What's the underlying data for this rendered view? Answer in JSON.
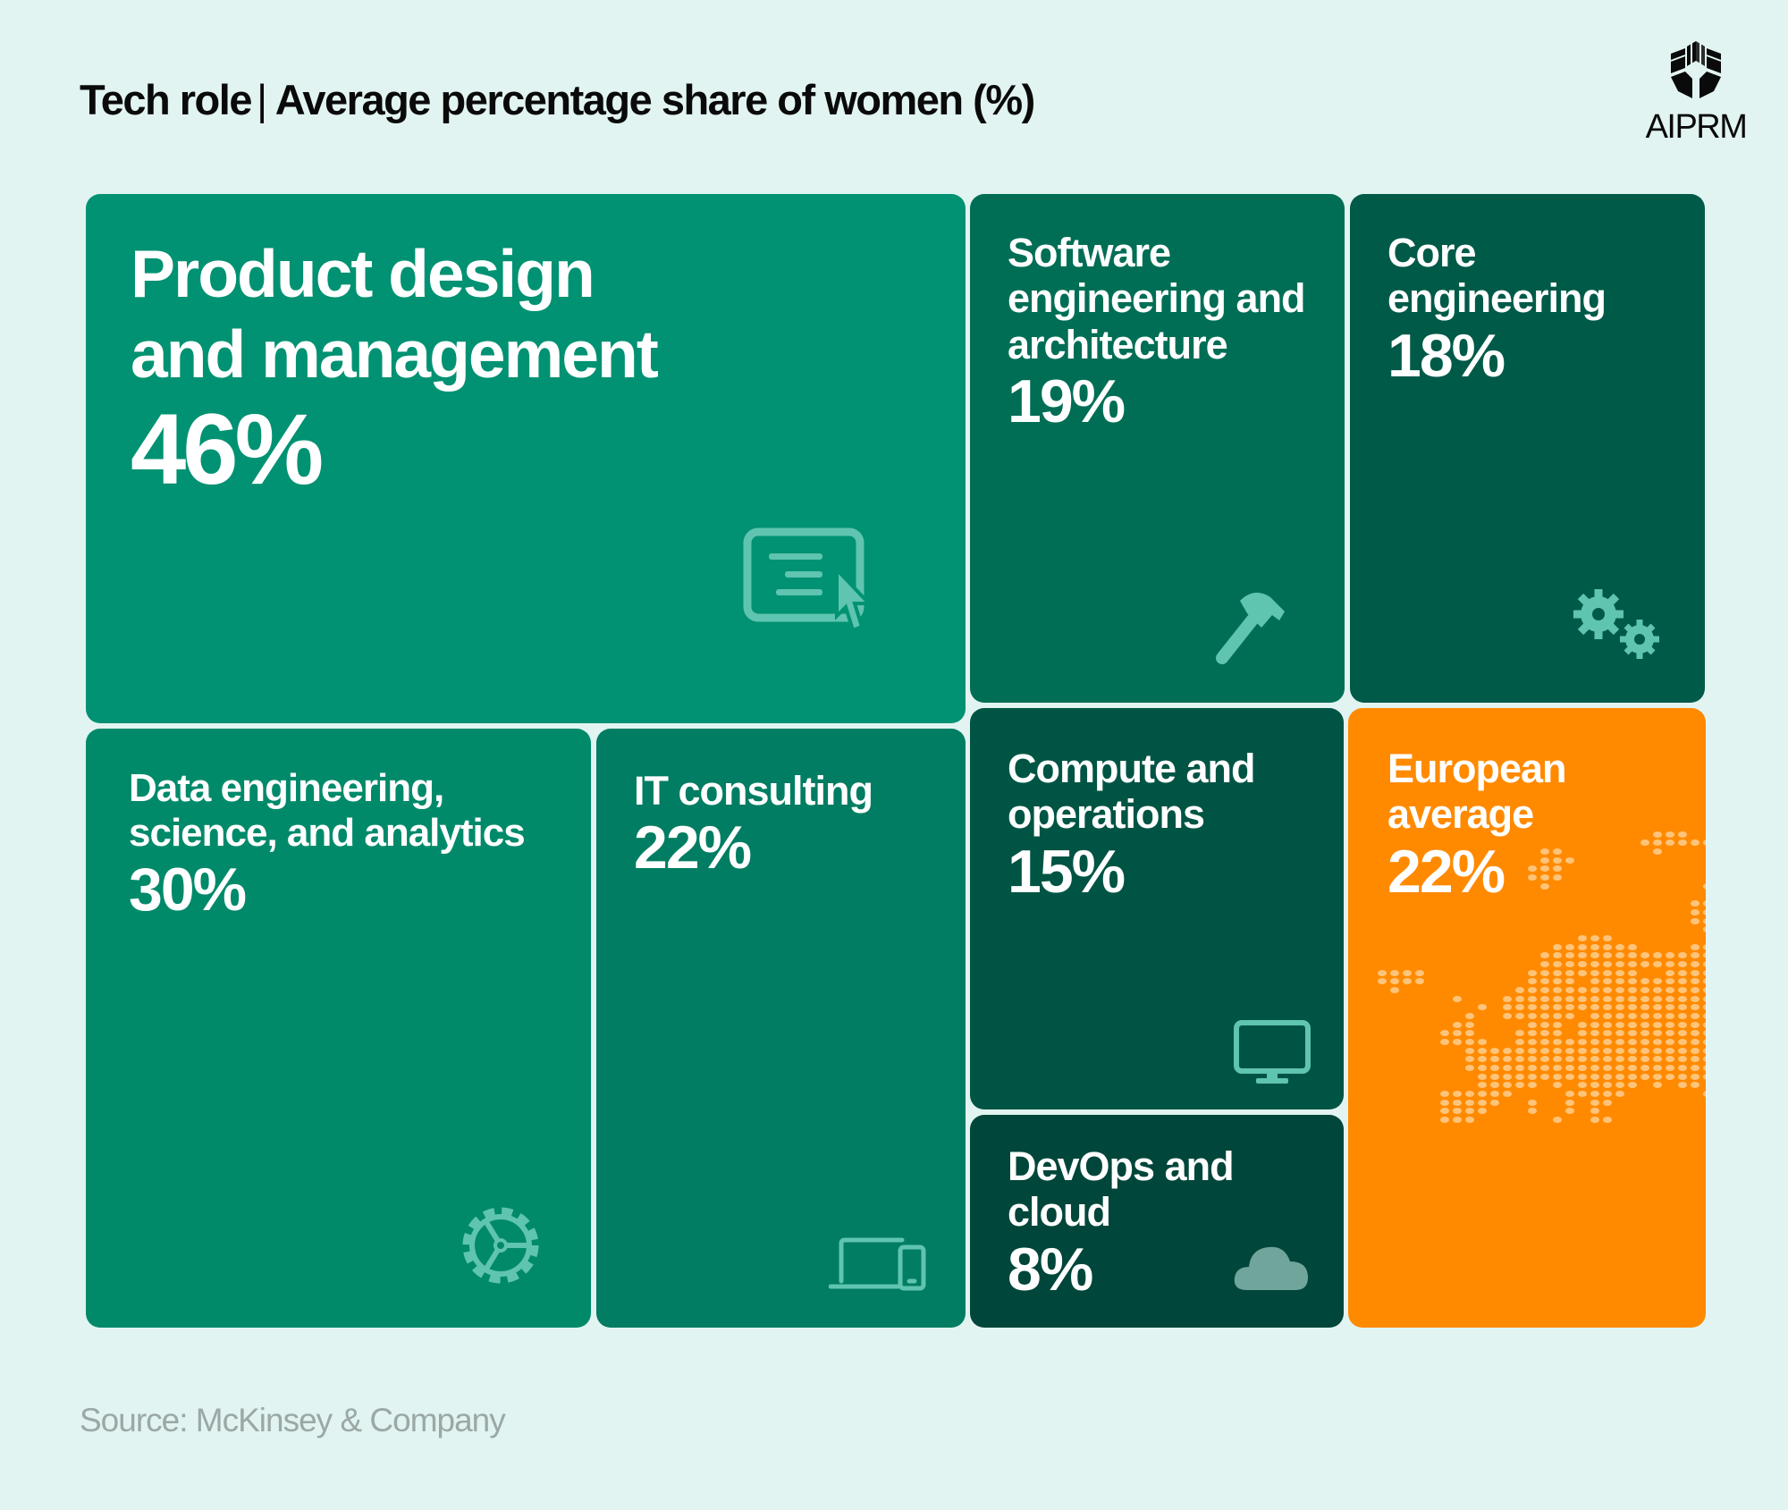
{
  "header": {
    "title_left": "Tech role",
    "separator": "|",
    "title_right": "Average percentage share of women (%)"
  },
  "logo": {
    "text": "AIPRM"
  },
  "chart_data": {
    "type": "treemap",
    "title": "Tech role | Average percentage share of women (%)",
    "unit": "%",
    "categories": [
      "Product design and management",
      "Software engineering and architecture",
      "Core engineering",
      "Data engineering, science, and analytics",
      "IT consulting",
      "Compute and operations",
      "DevOps and cloud",
      "European average"
    ],
    "values": [
      46,
      19,
      18,
      30,
      22,
      15,
      8,
      22
    ],
    "tiles": [
      {
        "label": "Product design and management",
        "value_label": "46%",
        "icon": "screen-cursor-icon",
        "color": "#009272"
      },
      {
        "label": "Software engineering and architecture",
        "value_label": "19%",
        "icon": "hammer-icon",
        "color": "#006e55"
      },
      {
        "label": "Core engineering",
        "value_label": "18%",
        "icon": "gears-icon",
        "color": "#005a48"
      },
      {
        "label": "Data engineering, science, and analytics",
        "value_label": "30%",
        "icon": "gear-icon",
        "color": "#008a6a"
      },
      {
        "label": "IT consulting",
        "value_label": "22%",
        "icon": "laptop-phone-icon",
        "color": "#007d62"
      },
      {
        "label": "Compute and operations",
        "value_label": "15%",
        "icon": "monitor-icon",
        "color": "#005444"
      },
      {
        "label": "DevOps and cloud",
        "value_label": "8%",
        "icon": "cloud-icon",
        "color": "#00463a"
      },
      {
        "label": "European average",
        "value_label": "22%",
        "icon": "europe-map",
        "color": "#ff8a00"
      }
    ]
  },
  "footer": {
    "source": "Source: McKinsey & Company"
  },
  "colors": {
    "background": "#e2f4f1",
    "icon": "#5fc4b0",
    "highlight": "#ff8a00"
  }
}
